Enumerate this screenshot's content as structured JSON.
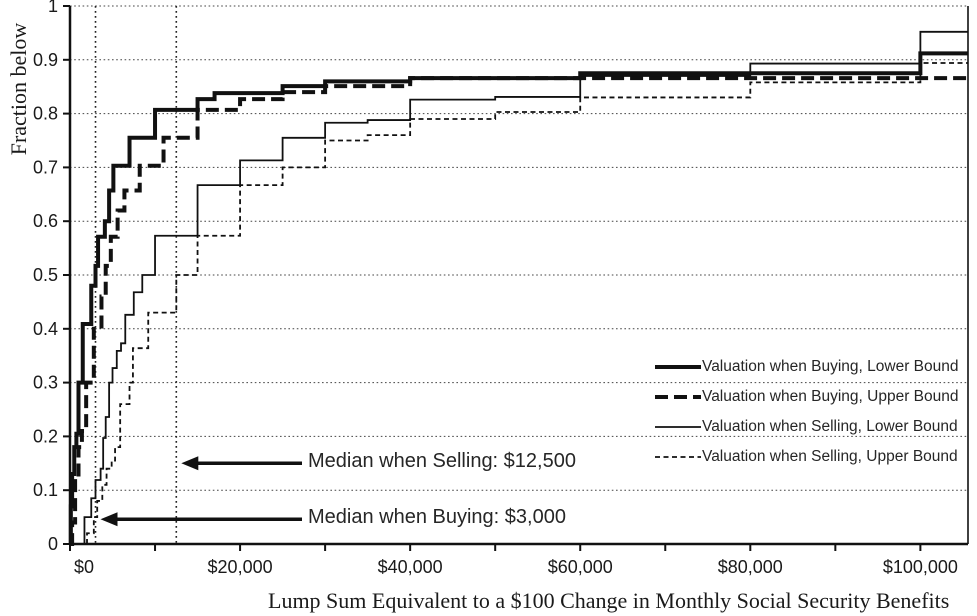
{
  "chart_data": {
    "type": "line",
    "subtype": "step-cdf",
    "title": "",
    "xlabel": "Lump Sum Equivalent to a $100 Change in Monthly Social Security Benefits",
    "ylabel": "Fraction below",
    "xlim": [
      0,
      105600
    ],
    "ylim": [
      0,
      1
    ],
    "grid": "dotted-horizontal-every-0.1",
    "legend_position": "right-center-inside",
    "x_ticks": [
      0,
      10000,
      20000,
      30000,
      40000,
      50000,
      60000,
      70000,
      80000,
      90000,
      100000
    ],
    "x_tick_labels": [
      {
        "value": 0,
        "label": "$0"
      },
      {
        "value": 20000,
        "label": "$20,000"
      },
      {
        "value": 40000,
        "label": "$40,000"
      },
      {
        "value": 60000,
        "label": "$60,000"
      },
      {
        "value": 80000,
        "label": "$80,000"
      },
      {
        "value": 100000,
        "label": "$100,000"
      }
    ],
    "y_ticks": [
      0,
      0.1,
      0.2,
      0.3,
      0.4,
      0.5,
      0.6,
      0.7,
      0.8,
      0.9,
      1
    ],
    "y_tick_labels": [
      "0",
      "0.1",
      "0.2",
      "0.3",
      "0.4",
      "0.5",
      "0.6",
      "0.7",
      "0.8",
      "0.9",
      "1"
    ],
    "line_color": "#111111",
    "series": [
      {
        "name": "Valuation when Buying, Lower Bound",
        "style": "thick-solid",
        "points": [
          [
            0,
            0
          ],
          [
            100,
            0.07
          ],
          [
            250,
            0.13
          ],
          [
            500,
            0.18
          ],
          [
            750,
            0.205
          ],
          [
            1000,
            0.3
          ],
          [
            1500,
            0.409
          ],
          [
            2500,
            0.48
          ],
          [
            3000,
            0.517
          ],
          [
            3300,
            0.571
          ],
          [
            4100,
            0.6
          ],
          [
            4600,
            0.657
          ],
          [
            5100,
            0.703
          ],
          [
            7000,
            0.755
          ],
          [
            10000,
            0.807
          ],
          [
            15000,
            0.827
          ],
          [
            17000,
            0.838
          ],
          [
            25000,
            0.851
          ],
          [
            30000,
            0.86
          ],
          [
            40000,
            0.866
          ],
          [
            60000,
            0.875
          ],
          [
            100000,
            0.912
          ]
        ]
      },
      {
        "name": "Valuation when Buying, Upper Bound",
        "style": "thick-dashed",
        "points": [
          [
            0,
            0
          ],
          [
            250,
            0.04
          ],
          [
            600,
            0.125
          ],
          [
            1000,
            0.18
          ],
          [
            1400,
            0.21
          ],
          [
            1900,
            0.3
          ],
          [
            2800,
            0.4
          ],
          [
            3700,
            0.46
          ],
          [
            4200,
            0.517
          ],
          [
            4800,
            0.571
          ],
          [
            5600,
            0.62
          ],
          [
            6400,
            0.657
          ],
          [
            8200,
            0.703
          ],
          [
            11000,
            0.755
          ],
          [
            15000,
            0.807
          ],
          [
            20000,
            0.827
          ],
          [
            25000,
            0.84
          ],
          [
            30000,
            0.851
          ],
          [
            40000,
            0.866
          ]
        ]
      },
      {
        "name": "Valuation when Selling, Lower Bound",
        "style": "thin-solid",
        "points": [
          [
            0,
            0
          ],
          [
            1700,
            0.05
          ],
          [
            2500,
            0.085
          ],
          [
            3000,
            0.119
          ],
          [
            3600,
            0.14
          ],
          [
            3900,
            0.197
          ],
          [
            4200,
            0.236
          ],
          [
            4600,
            0.3
          ],
          [
            5000,
            0.327
          ],
          [
            5500,
            0.359
          ],
          [
            6000,
            0.373
          ],
          [
            6500,
            0.426
          ],
          [
            7500,
            0.468
          ],
          [
            8500,
            0.5
          ],
          [
            10000,
            0.573
          ],
          [
            15000,
            0.667
          ],
          [
            20000,
            0.713
          ],
          [
            25000,
            0.755
          ],
          [
            30000,
            0.783
          ],
          [
            35000,
            0.788
          ],
          [
            40000,
            0.826
          ],
          [
            50000,
            0.831
          ],
          [
            60000,
            0.87
          ],
          [
            80000,
            0.893
          ],
          [
            100000,
            0.952
          ]
        ]
      },
      {
        "name": "Valuation when Selling, Upper Bound",
        "style": "thin-dashed",
        "points": [
          [
            0,
            0
          ],
          [
            2000,
            0.02
          ],
          [
            2800,
            0.05
          ],
          [
            3200,
            0.08
          ],
          [
            3800,
            0.11
          ],
          [
            4300,
            0.14
          ],
          [
            4900,
            0.155
          ],
          [
            5300,
            0.18
          ],
          [
            5900,
            0.26
          ],
          [
            7000,
            0.3
          ],
          [
            7400,
            0.364
          ],
          [
            9200,
            0.43
          ],
          [
            12500,
            0.5
          ],
          [
            15000,
            0.573
          ],
          [
            20000,
            0.667
          ],
          [
            25000,
            0.7
          ],
          [
            30000,
            0.75
          ],
          [
            35000,
            0.76
          ],
          [
            40000,
            0.79
          ],
          [
            50000,
            0.803
          ],
          [
            60000,
            0.83
          ],
          [
            80000,
            0.858
          ],
          [
            100000,
            0.894
          ]
        ]
      }
    ],
    "annotations": [
      {
        "label": "Median when Selling: $12,500",
        "x_value": 12500,
        "arrow_y": 0.15
      },
      {
        "label": "Median when Buying: $3,000",
        "x_value": 3000,
        "arrow_y": 0.046
      }
    ]
  }
}
